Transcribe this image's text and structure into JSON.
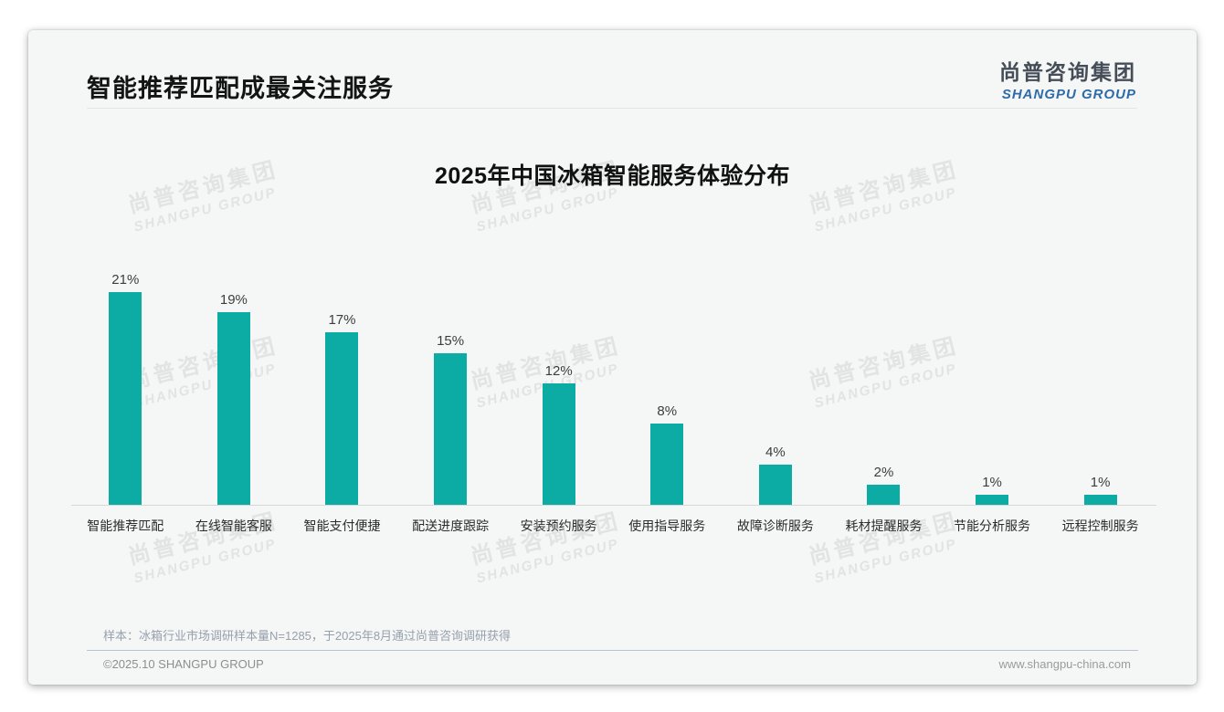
{
  "page": {
    "title": "智能推荐匹配成最关注服务",
    "logo": {
      "cn": "尚普咨询集团",
      "en": "SHANGPU GROUP"
    },
    "watermark": {
      "cn": "尚普咨询集团",
      "en": "SHANGPU GROUP"
    },
    "footnote": "样本：冰箱行业市场调研样本量N=1285，于2025年8月通过尚普咨询调研获得",
    "footer_left": "©2025.10 SHANGPU GROUP",
    "footer_right": "www.shangpu-china.com"
  },
  "colors": {
    "bar_teal": "#0caba3",
    "logo_blue": "#2f6ba8",
    "logo_dark": "#454e58",
    "slide_bg": "#f5f6f6"
  },
  "chart_data": {
    "type": "bar",
    "title": "2025年中国冰箱智能服务体验分布",
    "categories": [
      "智能推荐匹配",
      "在线智能客服",
      "智能支付便捷",
      "配送进度跟踪",
      "安装预约服务",
      "使用指导服务",
      "故障诊断服务",
      "耗材提醒服务",
      "节能分析服务",
      "远程控制服务"
    ],
    "values": [
      21,
      19,
      17,
      15,
      12,
      8,
      4,
      2,
      1,
      1
    ],
    "unit": "%",
    "data_labels": true,
    "xlabel": "",
    "ylabel": "",
    "ylim": [
      0,
      22
    ],
    "grid": false,
    "legend": "none",
    "bar_color": "#0caba3"
  }
}
